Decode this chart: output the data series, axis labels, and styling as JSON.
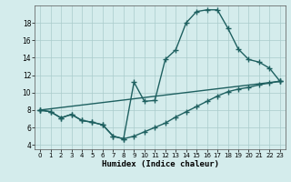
{
  "xlabel": "Humidex (Indice chaleur)",
  "bg_color": "#d4ecec",
  "line_color": "#1e6060",
  "grid_color": "#aacccc",
  "xlim": [
    -0.5,
    23.5
  ],
  "ylim": [
    3.5,
    20.0
  ],
  "xticks": [
    0,
    1,
    2,
    3,
    4,
    5,
    6,
    7,
    8,
    9,
    10,
    11,
    12,
    13,
    14,
    15,
    16,
    17,
    18,
    19,
    20,
    21,
    22,
    23
  ],
  "yticks": [
    4,
    6,
    8,
    10,
    12,
    14,
    16,
    18
  ],
  "line1_x": [
    0,
    1,
    2,
    3,
    4,
    5,
    6,
    7,
    8,
    9,
    10,
    11,
    12,
    13,
    14,
    15,
    16,
    17,
    18,
    19,
    20,
    21,
    22,
    23
  ],
  "line1_y": [
    8.0,
    7.8,
    7.1,
    7.5,
    6.8,
    6.6,
    6.3,
    5.0,
    4.7,
    11.2,
    9.0,
    9.1,
    13.8,
    14.9,
    18.0,
    19.3,
    19.5,
    19.5,
    17.4,
    15.0,
    13.8,
    13.5,
    12.8,
    11.3
  ],
  "line2_x": [
    0,
    1,
    2,
    3,
    4,
    5,
    6,
    7,
    8,
    9,
    10,
    11,
    12,
    13,
    14,
    15,
    16,
    17,
    18,
    19,
    20,
    21,
    22,
    23
  ],
  "line2_y": [
    8.0,
    7.8,
    7.1,
    7.5,
    6.8,
    6.6,
    6.3,
    5.0,
    4.7,
    5.0,
    5.5,
    6.0,
    6.5,
    7.2,
    7.8,
    8.4,
    9.0,
    9.6,
    10.1,
    10.4,
    10.6,
    10.9,
    11.1,
    11.3
  ],
  "line3_x": [
    0,
    23
  ],
  "line3_y": [
    8.0,
    11.3
  ],
  "marker": "+",
  "markersize": 4,
  "markeredgewidth": 1.0,
  "linewidth": 1.0
}
